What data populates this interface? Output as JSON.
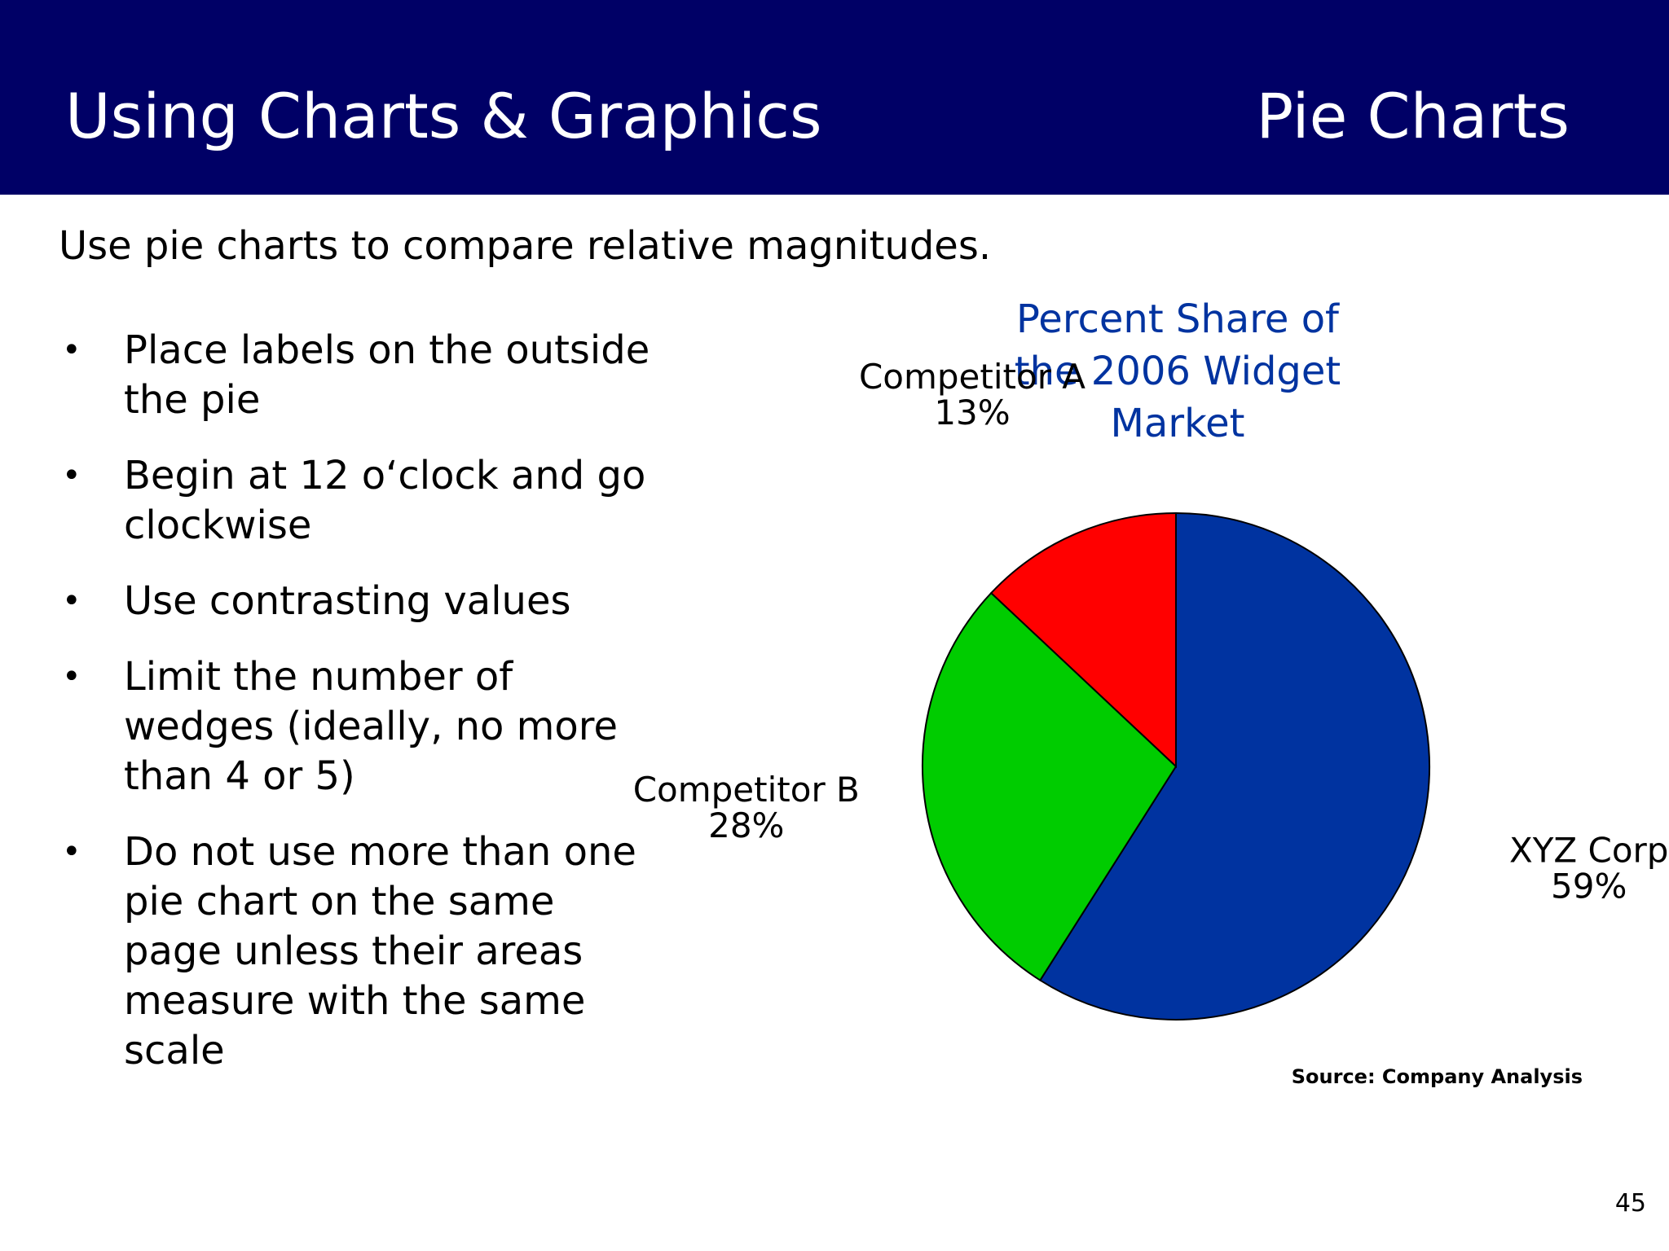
{
  "header": {
    "title": "Using Charts & Graphics",
    "section": "Pie Charts",
    "background_color": "#000066"
  },
  "intro": "Use pie charts to compare relative magnitudes.",
  "bullets": [
    "Place labels on the outside the pie",
    "Begin at 12 o‘clock and go clockwise",
    "Use contrasting values",
    "Limit the number of wedges (ideally, no more than 4 or 5)",
    "Do not use more than one pie chart on the same page unless their areas measure with the same scale"
  ],
  "chart_data": {
    "type": "pie",
    "title": "Percent Share of the 2006 Widget Market",
    "start": "12 o'clock",
    "direction": "clockwise",
    "slices": [
      {
        "label": "XYZ Corp",
        "value": 59,
        "display": "59%",
        "color": "#0033a0"
      },
      {
        "label": "Competitor B",
        "value": 28,
        "display": "28%",
        "color": "#00cc00"
      },
      {
        "label": "Competitor A",
        "value": 13,
        "display": "13%",
        "color": "#ff0000"
      }
    ]
  },
  "source": "Source: Company Analysis",
  "page_number": "45"
}
